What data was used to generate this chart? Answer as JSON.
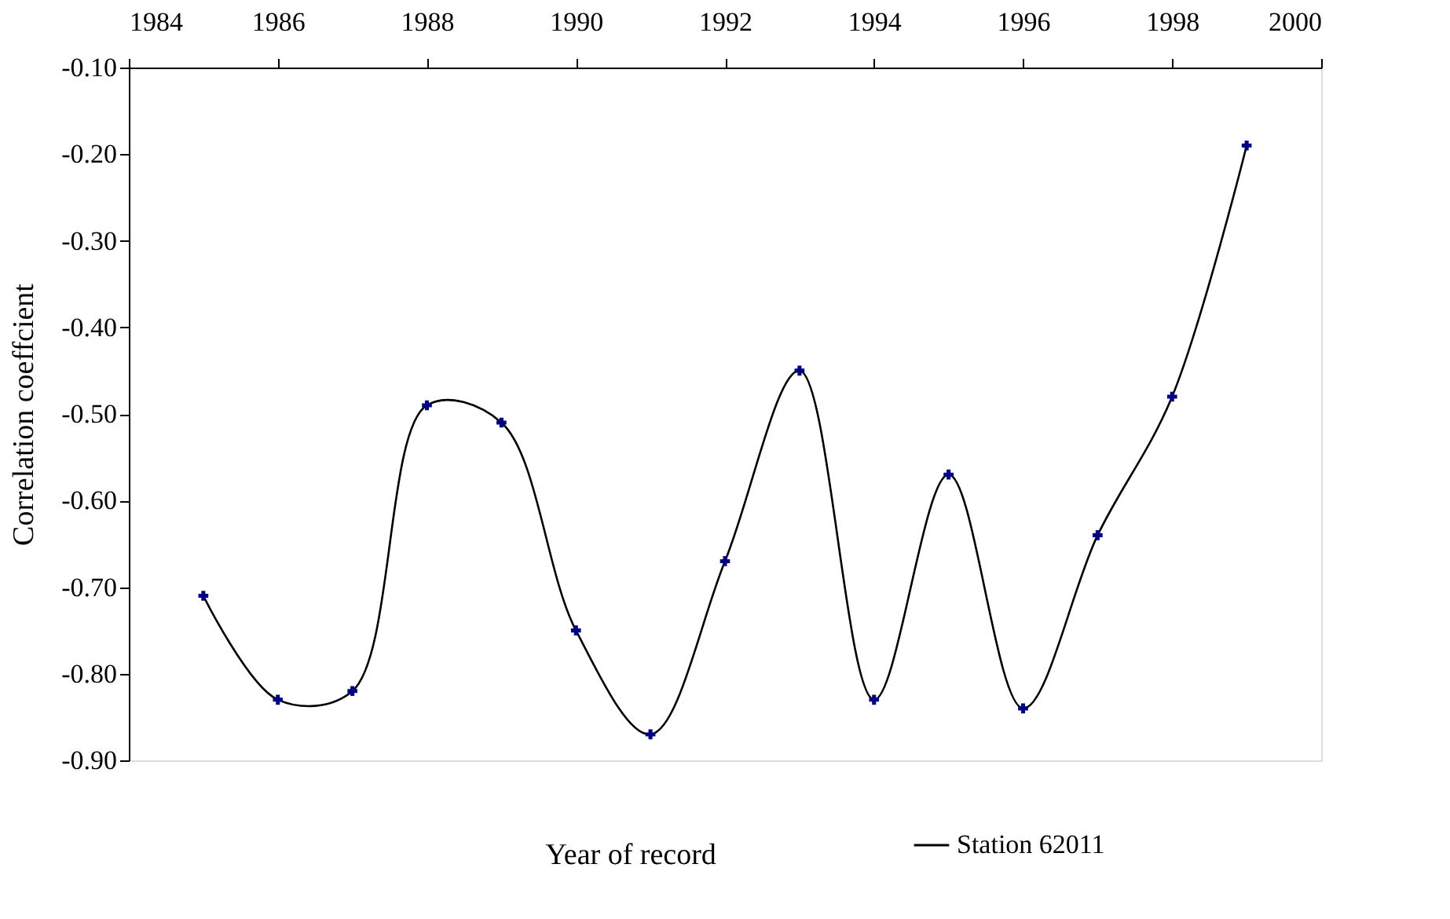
{
  "chart_data": {
    "type": "line",
    "xlabel": "Year of record",
    "ylabel": "Correlation coeffcient",
    "x": [
      1985,
      1986,
      1987,
      1988,
      1989,
      1990,
      1991,
      1992,
      1993,
      1994,
      1995,
      1996,
      1997,
      1998,
      1999
    ],
    "series": [
      {
        "name": "Station 62011",
        "color": "#000080",
        "values": [
          -0.71,
          -0.83,
          -0.82,
          -0.49,
          -0.51,
          -0.75,
          -0.87,
          -0.67,
          -0.45,
          -0.83,
          -0.57,
          -0.84,
          -0.64,
          -0.48,
          -0.19
        ]
      }
    ],
    "xlim": [
      1984,
      2000
    ],
    "xticks": [
      1984,
      1986,
      1988,
      1990,
      1992,
      1994,
      1996,
      1998,
      2000
    ],
    "ylim": [
      -0.9,
      -0.1
    ],
    "yticks": [
      {
        "value": -0.9,
        "label": "-0.90"
      },
      {
        "value": -0.8,
        "label": "-0.80"
      },
      {
        "value": -0.7,
        "label": "-0.70"
      },
      {
        "value": -0.6,
        "label": "-0.60"
      },
      {
        "value": -0.5,
        "label": "-0.50"
      },
      {
        "value": -0.4,
        "label": "-0.40"
      },
      {
        "value": -0.3,
        "label": "-0.30"
      },
      {
        "value": -0.2,
        "label": "-0.20"
      },
      {
        "value": -0.1,
        "label": "-0.10"
      }
    ],
    "marker": "cross",
    "line_style": "solid",
    "grid": false,
    "legend": "bottom right"
  }
}
